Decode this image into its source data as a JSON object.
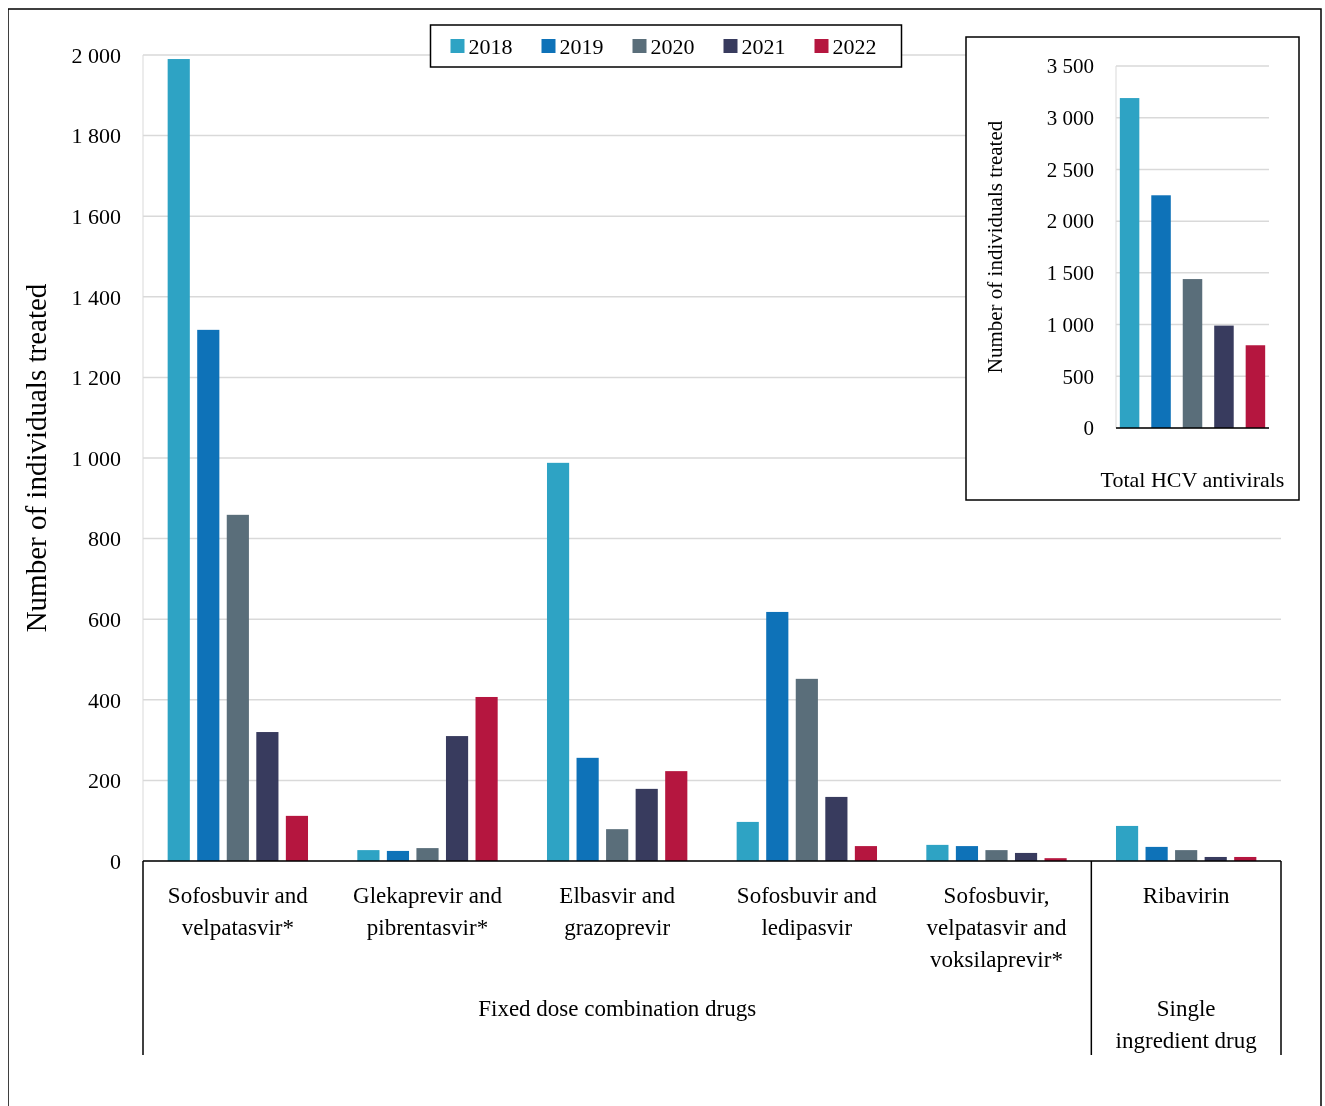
{
  "chart_data": [
    {
      "type": "bar",
      "ylabel": "Number of individuals treated",
      "categories": [
        "Sofosbuvir and velpatasvir*",
        "Glekaprevir and pibrentasvir*",
        "Elbasvir and grazoprevir",
        "Sofosbuvir and ledipasvir",
        "Sofosbuvir, velpatasvir and voksilaprevir*",
        "Ribavirin"
      ],
      "series": [
        {
          "name": "2018",
          "color": "#2ea3c4",
          "values": [
            1990,
            27,
            988,
            97,
            40,
            87
          ]
        },
        {
          "name": "2019",
          "color": "#0e72b8",
          "values": [
            1318,
            25,
            256,
            618,
            37,
            35
          ]
        },
        {
          "name": "2020",
          "color": "#5a6e7a",
          "values": [
            859,
            32,
            79,
            452,
            27,
            27
          ]
        },
        {
          "name": "2021",
          "color": "#383b5e",
          "values": [
            320,
            310,
            179,
            159,
            20,
            10
          ]
        },
        {
          "name": "2022",
          "color": "#b5163f",
          "values": [
            112,
            407,
            223,
            37,
            7,
            10
          ]
        }
      ],
      "ylim": [
        0,
        2000
      ],
      "yticks": [
        0,
        200,
        400,
        600,
        800,
        {
          "value": 1000,
          "label": "1 000"
        },
        {
          "value": 1200,
          "label": "1 200"
        },
        {
          "value": 1400,
          "label": "1 400"
        },
        {
          "value": 1600,
          "label": "1 600"
        },
        {
          "value": 1800,
          "label": "1 800"
        },
        {
          "value": 2000,
          "label": "2 000"
        }
      ],
      "grid": "y",
      "legend": "top",
      "annotations": [
        "Fixed dose combination drugs",
        "Single ingredient drug"
      ]
    },
    {
      "type": "bar",
      "ylabel": "Number of individuals treated",
      "categories": [
        "Total HCV antivirals"
      ],
      "series": [
        {
          "color": "#2ea3c4",
          "values": [
            3190
          ]
        },
        {
          "color": "#0e72b8",
          "values": [
            2250
          ]
        },
        {
          "color": "#5a6e7a",
          "values": [
            1440
          ]
        },
        {
          "color": "#383b5e",
          "values": [
            990
          ]
        },
        {
          "color": "#b5163f",
          "values": [
            800
          ]
        }
      ],
      "ylim": [
        0,
        3500
      ],
      "yticks": [
        0,
        500,
        {
          "value": 1000,
          "label": "1 000"
        },
        {
          "value": 1500,
          "label": "1 500"
        },
        {
          "value": 2000,
          "label": "2 000"
        },
        {
          "value": 2500,
          "label": "2 500"
        },
        {
          "value": 3000,
          "label": "3 000"
        },
        {
          "value": 3500,
          "label": "3 500"
        }
      ],
      "grid": "y",
      "legend": false
    }
  ]
}
